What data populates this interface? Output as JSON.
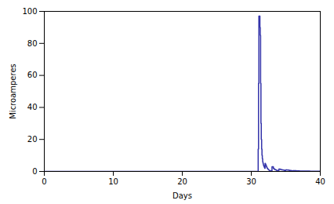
{
  "chart_data": {
    "type": "line",
    "xlabel": "Days",
    "ylabel": "Microamperes",
    "xlim": [
      0,
      40
    ],
    "ylim": [
      0,
      100
    ],
    "xticks": [
      0,
      10,
      20,
      30,
      40
    ],
    "yticks": [
      0,
      20,
      40,
      60,
      80,
      100
    ],
    "color": "#3333aa",
    "line_style": "steps",
    "grid": false,
    "x": [
      0,
      1,
      2,
      3,
      4,
      5,
      6,
      7,
      8,
      9,
      10,
      11,
      12,
      13,
      14,
      15,
      16,
      17,
      18,
      19,
      20,
      21,
      22,
      23,
      24,
      25,
      26,
      27,
      28,
      29,
      30,
      30.8,
      30.9,
      31.0,
      31.05,
      31.1,
      31.15,
      31.2,
      31.25,
      31.3,
      31.35,
      31.4,
      31.45,
      31.5,
      31.55,
      31.6,
      31.65,
      31.7,
      31.75,
      31.8,
      31.85,
      31.9,
      31.95,
      32.0,
      32.05,
      32.1,
      32.15,
      32.2,
      32.25,
      32.3,
      32.35,
      32.4,
      32.45,
      32.5,
      32.55,
      32.6,
      32.65,
      32.7,
      32.75,
      32.8,
      32.85,
      32.9,
      32.95,
      33.0,
      33.1,
      33.2,
      33.3,
      33.4,
      33.5,
      33.6,
      33.7,
      33.8,
      33.9,
      34.0,
      34.2,
      34.4,
      34.6,
      34.8,
      35.0,
      35.2,
      35.5,
      35.8,
      36.0,
      36.5,
      37.0,
      37.5,
      38.0,
      38.5,
      39.0,
      40.0
    ],
    "values": [
      0,
      0,
      0,
      0,
      0,
      0,
      0,
      0,
      0,
      0,
      0,
      0,
      0,
      0,
      0,
      0,
      0,
      0,
      0,
      0,
      0,
      0,
      0,
      0,
      0,
      0,
      0,
      0,
      0,
      0,
      0,
      0,
      0,
      14,
      55,
      97,
      97,
      97,
      90,
      85,
      55,
      30,
      20,
      14,
      10,
      8,
      6,
      5,
      4,
      3.5,
      3,
      2.5,
      2,
      5,
      4.5,
      4,
      3.5,
      3,
      2.5,
      2,
      1.8,
      1.5,
      1.2,
      1.0,
      0.8,
      0.7,
      0.6,
      0.5,
      0.5,
      0.4,
      0.4,
      0.3,
      0.3,
      3,
      3,
      2,
      1.5,
      1.2,
      1.0,
      0.8,
      0.6,
      0.5,
      0.4,
      1.5,
      1.2,
      1.0,
      0.8,
      0.6,
      1.0,
      0.8,
      0.6,
      0.4,
      0.5,
      0.4,
      0.3,
      0.2,
      0.2,
      0.1,
      0.1,
      0.0
    ]
  }
}
